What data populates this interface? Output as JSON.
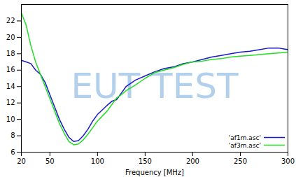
{
  "chart_data": {
    "type": "line",
    "xlabel": "Frequency [MHz]",
    "annotations": [
      "EUT TEST"
    ],
    "x": [
      20,
      25,
      30,
      35,
      40,
      45,
      50,
      55,
      60,
      65,
      70,
      75,
      80,
      85,
      90,
      95,
      100,
      110,
      115,
      120,
      125,
      130,
      140,
      150,
      160,
      170,
      180,
      190,
      200,
      210,
      220,
      230,
      240,
      250,
      260,
      270,
      280,
      290,
      300
    ],
    "series": [
      {
        "name": "'af1m.asc'",
        "color": "#1a1ac8",
        "values": [
          17.2,
          17.0,
          16.8,
          16.0,
          15.5,
          14.5,
          13.0,
          11.5,
          10.0,
          8.8,
          7.8,
          7.3,
          7.4,
          8.0,
          8.8,
          9.8,
          10.6,
          11.7,
          12.2,
          12.4,
          13.2,
          14.0,
          14.8,
          15.3,
          15.8,
          16.2,
          16.4,
          16.8,
          17.0,
          17.3,
          17.6,
          17.8,
          18.0,
          18.2,
          18.3,
          18.5,
          18.7,
          18.7,
          18.5
        ]
      },
      {
        "name": "'af3m.asc'",
        "color": "#22dd22",
        "values": [
          23.0,
          21.5,
          19.0,
          17.0,
          15.5,
          14.0,
          12.5,
          11.0,
          9.5,
          8.3,
          7.3,
          6.9,
          7.0,
          7.5,
          8.2,
          9.0,
          9.8,
          11.0,
          11.8,
          12.6,
          13.0,
          13.5,
          14.2,
          15.0,
          15.7,
          16.0,
          16.3,
          16.7,
          17.0,
          17.1,
          17.3,
          17.4,
          17.6,
          17.7,
          17.8,
          17.9,
          18.0,
          18.1,
          18.2
        ]
      }
    ],
    "xlim": [
      20,
      300
    ],
    "xticks": [
      20,
      50,
      100,
      150,
      200,
      250,
      300
    ],
    "ylim": [
      6,
      24
    ],
    "yticks": [
      6,
      8,
      10,
      12,
      14,
      16,
      18,
      20,
      22
    ],
    "grid": false,
    "legend": "lower right"
  }
}
